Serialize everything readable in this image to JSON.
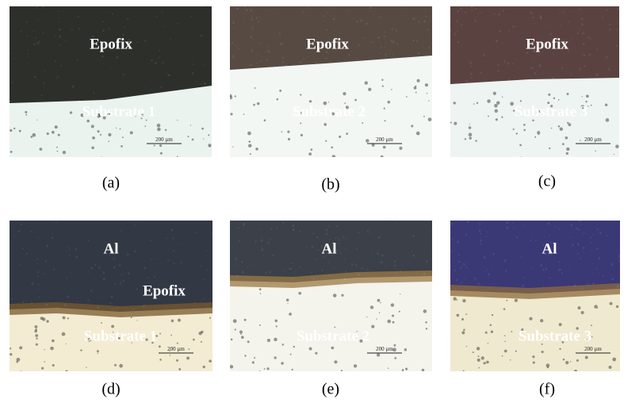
{
  "panels": [
    {
      "caption": "(a)",
      "labels": [
        "Epofix",
        "Substrate 1"
      ],
      "scale_bar": "200 µm"
    },
    {
      "caption": "(b)",
      "labels": [
        "Epofix",
        "Substrate 2"
      ],
      "scale_bar": "200 µm"
    },
    {
      "caption": "(c)",
      "labels": [
        "Epofix",
        "Substrate 3"
      ],
      "scale_bar": "200 µm"
    },
    {
      "caption": "(d)",
      "labels": [
        "Al",
        "Epofix",
        "Substrate 1"
      ],
      "scale_bar": "200 µm"
    },
    {
      "caption": "(e)",
      "labels": [
        "Al",
        "Substrate 2"
      ],
      "scale_bar": "200 µm"
    },
    {
      "caption": "(f)",
      "labels": [
        "Al",
        "Substrate 3"
      ],
      "scale_bar": "200 µm"
    }
  ]
}
